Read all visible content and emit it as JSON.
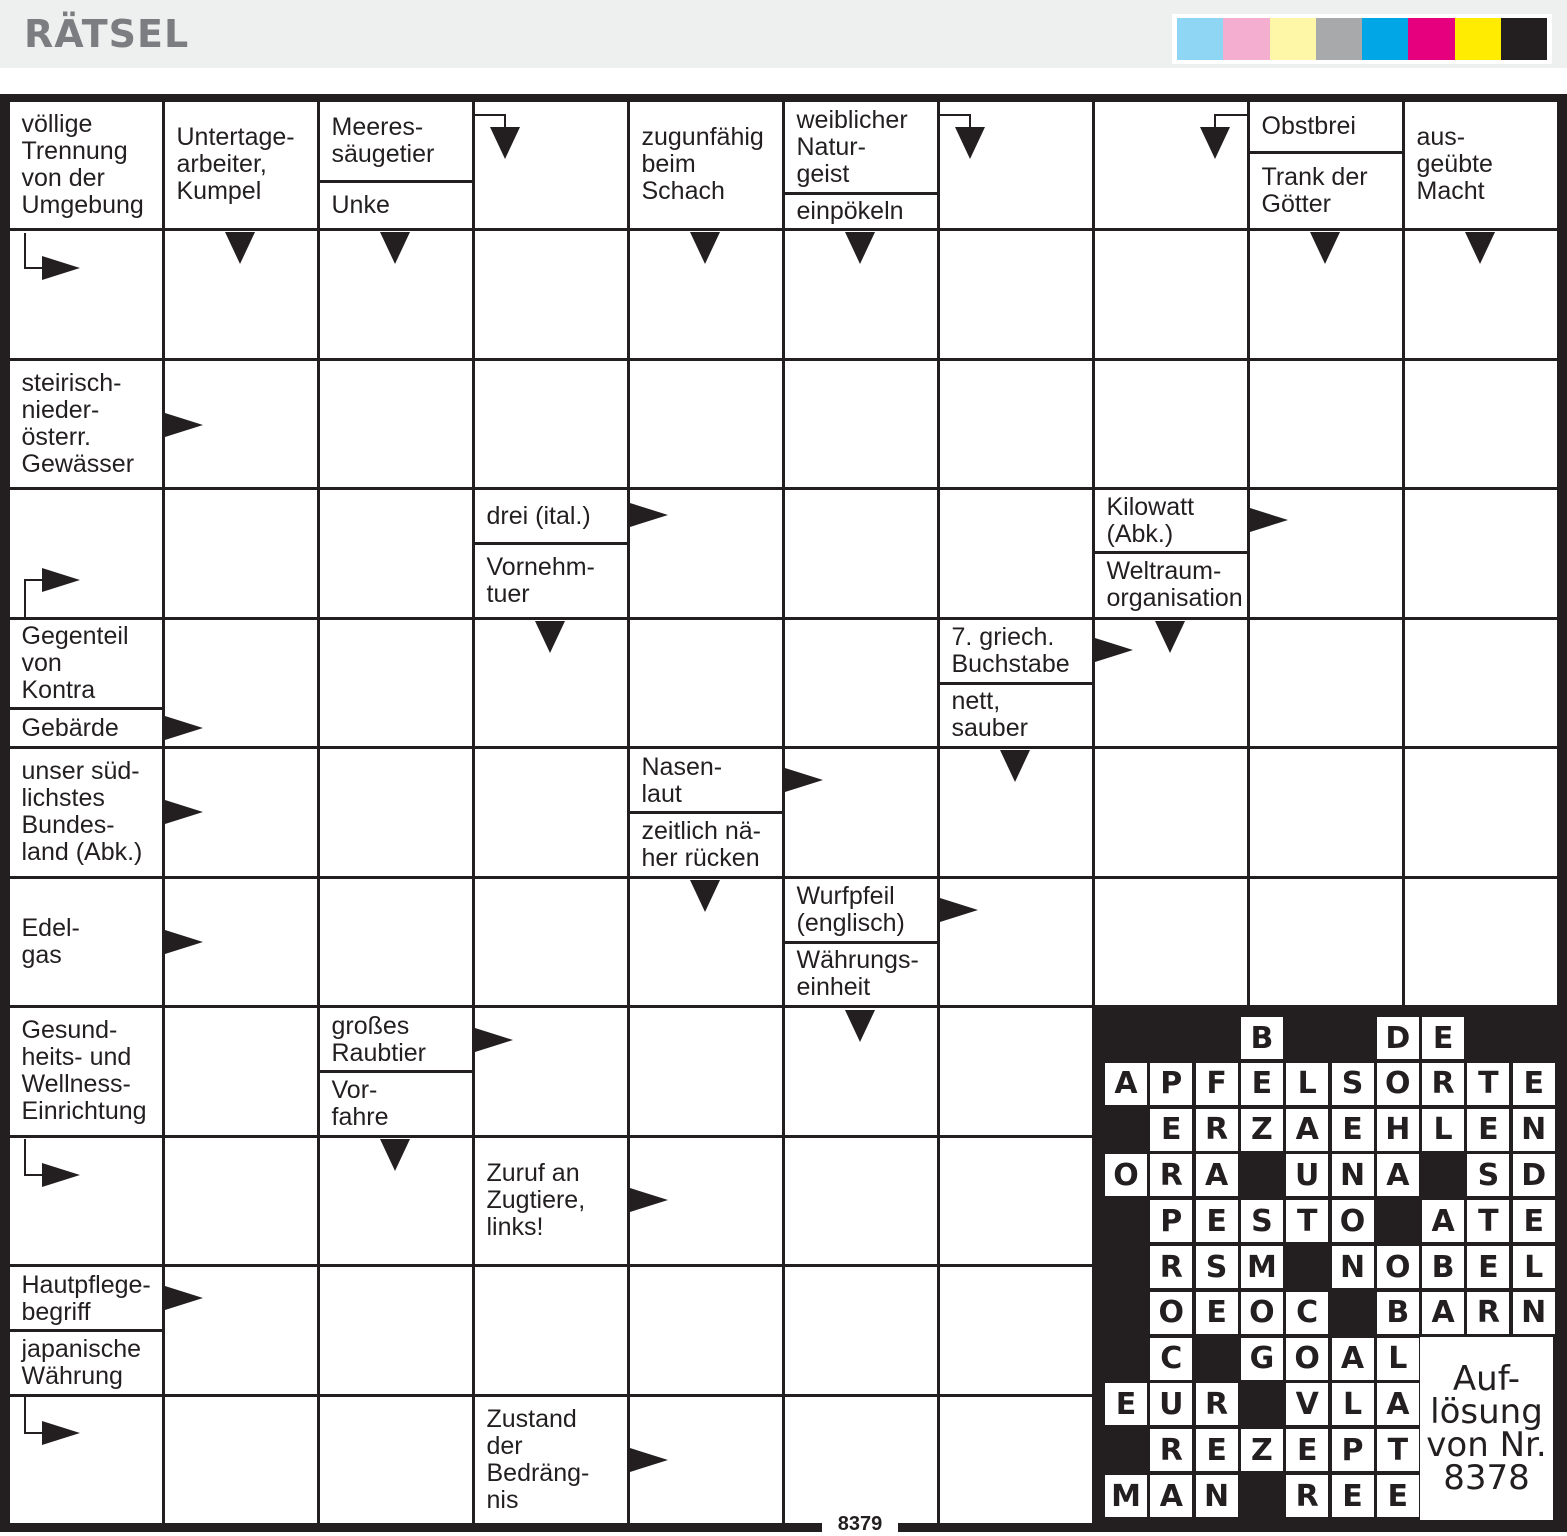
{
  "header": {
    "title": "RÄTSEL",
    "color_bar": [
      "#8fd6f5",
      "#f4aed0",
      "#fff7a8",
      "#a8a9ab",
      "#00a6e6",
      "#e6007e",
      "#ffec00",
      "#231f20"
    ]
  },
  "clues": [
    {
      "text": "völlige\nTrennung\nvon der\nUmgebung"
    },
    {
      "text": "Untertage-\narbeiter,\nKumpel"
    },
    {
      "top": "Meeres-\nsäugetier",
      "bottom": "Unke"
    },
    {
      "text": "zugunfähig\nbeim\nSchach"
    },
    {
      "top": "weiblicher\nNatur-\ngeist",
      "bottom": "einpökeln"
    },
    {
      "top": "Obstbrei",
      "bottom": "Trank der\nGötter"
    },
    {
      "text": "aus-\ngeübte\nMacht"
    },
    {
      "text": "steirisch-\nnieder-\nösterr.\nGewässer"
    },
    {
      "top": "drei (ital.)",
      "bottom": "Vornehm-\ntuer"
    },
    {
      "top": "Kilowatt\n(Abk.)",
      "bottom": "Weltraum-\norganisation"
    },
    {
      "top": "Gegenteil\nvon\nKontra",
      "bottom": "Gebärde"
    },
    {
      "top": "7. griech.\nBuchstabe",
      "bottom": "nett,\nsauber"
    },
    {
      "text": "unser süd-\nlichstes\nBundes-\nland (Abk.)"
    },
    {
      "top": "Nasen-\nlaut",
      "bottom": "zeitlich nä-\nher rücken"
    },
    {
      "text": "Edel-\ngas"
    },
    {
      "top": "Wurfpfeil\n(englisch)",
      "bottom": "Währungs-\neinheit"
    },
    {
      "text": "Gesund-\nheits- und\nWellness-\nEinrichtung"
    },
    {
      "top": "großes\nRaubtier",
      "bottom": "Vor-\nfahre"
    },
    {
      "text": "Zuruf an\nZugtiere,\nlinks!"
    },
    {
      "top": "Hautpflege-\nbegriff",
      "bottom": "japanische\nWährung"
    },
    {
      "text": "Zustand\nder\nBedräng-\nnis"
    }
  ],
  "solution": {
    "rows": [
      "...B..DE..",
      "APFELSORTE",
      ".ERZAEHLEN",
      "ORA.UNA.SD",
      ".PESTO.ATE",
      ".RSM.NOBEL",
      ".OEOC.BARN",
      ".C.GOAL...",
      "EUR.VLA...",
      ".REZEPT...",
      "MAN.REE..."
    ],
    "label": "Auf-\nlösung\nvon Nr.\n8378"
  },
  "puzzle_number": "8379"
}
